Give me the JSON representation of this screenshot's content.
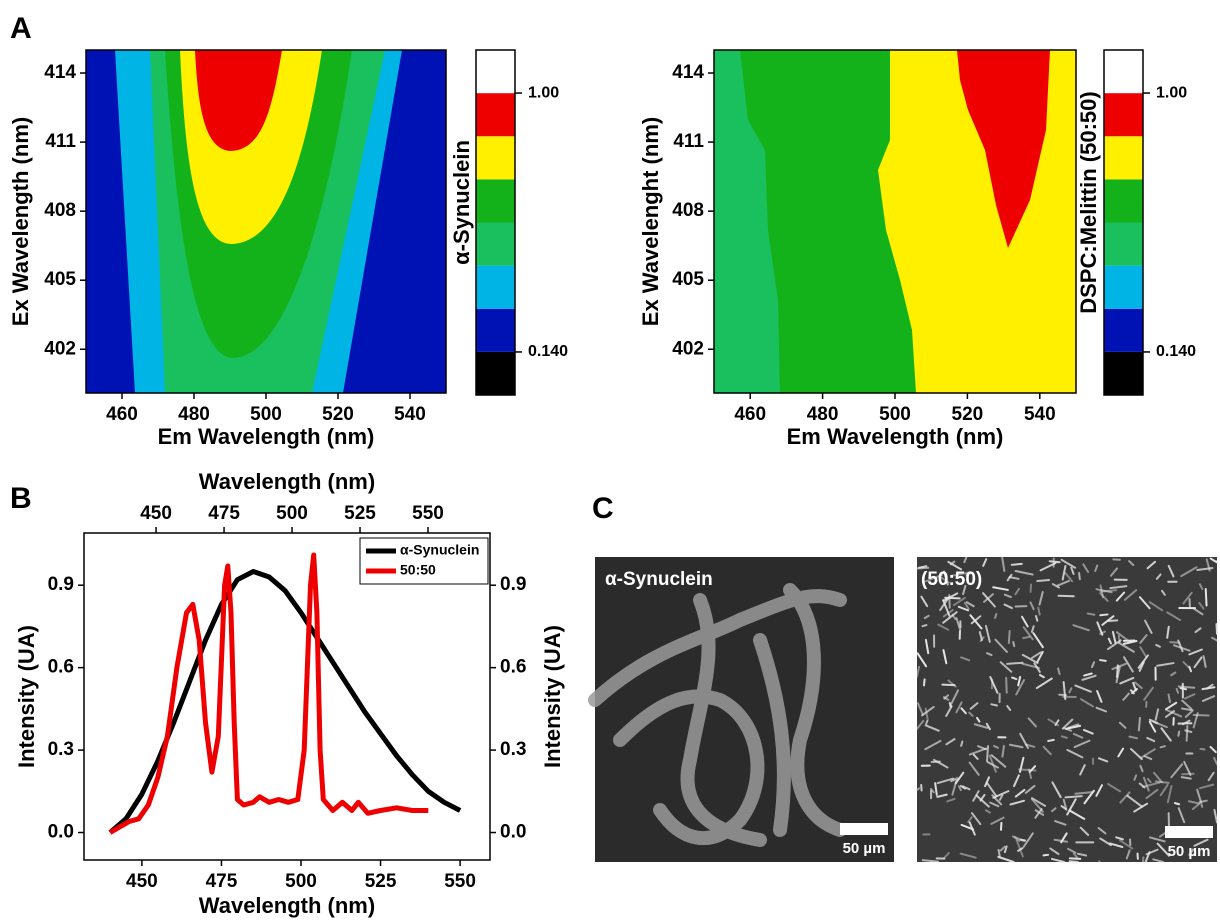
{
  "panels": [
    "A",
    "B",
    "C"
  ],
  "images": [
    {
      "label": "α-Synuclein",
      "scale_bar": "50 µm"
    },
    {
      "label": "(50:50)",
      "scale_bar": "50 µm"
    }
  ],
  "chart_data": [
    {
      "type": "contour",
      "xlabel": "Em Wavelength (nm)",
      "ylabel": "Ex Wavelength (nm)",
      "xlim": [
        450,
        550
      ],
      "xticks": [
        460,
        480,
        500,
        520,
        540
      ],
      "ylim": [
        400.1,
        415
      ],
      "yticks": [
        402,
        405,
        408,
        411,
        414
      ],
      "colorbar": {
        "label": "α-Synuclein",
        "colors": [
          "#000000",
          "#0012b4",
          "#00b4e6",
          "#1abf5e",
          "#13b21a",
          "#fff000",
          "#ee0000",
          "#ffffff"
        ],
        "zlim": [
          -0.003,
          1.143
        ],
        "ticks": [
          {
            "value": 0.14,
            "label": "0.140"
          },
          {
            "value": 1,
            "label": "1.00"
          }
        ]
      }
    },
    {
      "type": "contour",
      "xlabel": "Em Wavelength (nm)",
      "ylabel": "Ex Wavelenght (nm)",
      "xlim": [
        450,
        550
      ],
      "xticks": [
        460,
        480,
        500,
        520,
        540
      ],
      "ylim": [
        400.1,
        415
      ],
      "yticks": [
        402,
        405,
        408,
        411,
        414
      ],
      "colorbar": {
        "label": "DSPC:Melittin (50:50)",
        "colors": [
          "#000000",
          "#0012b4",
          "#00b4e6",
          "#1abf5e",
          "#13b21a",
          "#fff000",
          "#ee0000",
          "#ffffff"
        ],
        "zlim": [
          -0.003,
          1.143
        ],
        "ticks": [
          {
            "value": 0.14,
            "label": "0.140"
          },
          {
            "value": 1,
            "label": "1.00"
          }
        ]
      }
    },
    {
      "type": "line",
      "xlabel": "Wavelength (nm)",
      "x2label": "Wavelength (nm)",
      "ylabel": "Intensity (UA)",
      "y2label": "Intensity (UA)",
      "xlim": [
        431.8,
        559.4
      ],
      "xticks": [
        450,
        475,
        500,
        525,
        550
      ],
      "x2lim": [
        423.5,
        572.8
      ],
      "x2ticks": [
        450,
        475,
        500,
        525,
        550
      ],
      "ylim": [
        -0.1,
        1.09
      ],
      "yticks": [
        {
          "value": 0,
          "label": "0.0"
        },
        0.3,
        0.6,
        0.9
      ],
      "y2lim": [
        -0.1,
        1.09
      ],
      "y2ticks": [
        {
          "value": 0,
          "label": "0.0"
        },
        0.3,
        0.6,
        0.9
      ],
      "legend": "upper right",
      "series": [
        {
          "name": "α-Synuclein",
          "color": "#000000",
          "x": [
            440,
            445,
            450,
            455,
            460,
            465,
            470,
            475,
            480,
            485,
            490,
            495,
            500,
            505,
            510,
            515,
            520,
            525,
            530,
            535,
            540,
            545,
            550
          ],
          "values": [
            0.0,
            0.05,
            0.14,
            0.26,
            0.4,
            0.55,
            0.7,
            0.83,
            0.92,
            0.95,
            0.93,
            0.88,
            0.8,
            0.71,
            0.62,
            0.53,
            0.44,
            0.36,
            0.28,
            0.21,
            0.15,
            0.11,
            0.08
          ]
        },
        {
          "name": "50:50",
          "color": "#ee0000",
          "x": [
            440,
            443,
            446,
            449,
            452,
            455,
            458,
            461,
            464,
            466,
            468,
            470,
            472,
            474,
            476,
            477,
            478,
            479,
            480,
            482,
            485,
            487,
            490,
            493,
            496,
            499,
            501,
            503,
            504,
            505,
            506,
            507,
            510,
            513,
            516,
            518,
            521,
            525,
            530,
            535,
            540
          ],
          "values": [
            0.0,
            0.02,
            0.04,
            0.05,
            0.1,
            0.2,
            0.35,
            0.6,
            0.8,
            0.83,
            0.7,
            0.4,
            0.22,
            0.35,
            0.9,
            0.97,
            0.8,
            0.4,
            0.12,
            0.1,
            0.11,
            0.13,
            0.11,
            0.12,
            0.11,
            0.12,
            0.3,
            0.9,
            1.01,
            0.8,
            0.3,
            0.12,
            0.08,
            0.11,
            0.08,
            0.11,
            0.07,
            0.08,
            0.09,
            0.08,
            0.08
          ]
        }
      ]
    }
  ]
}
